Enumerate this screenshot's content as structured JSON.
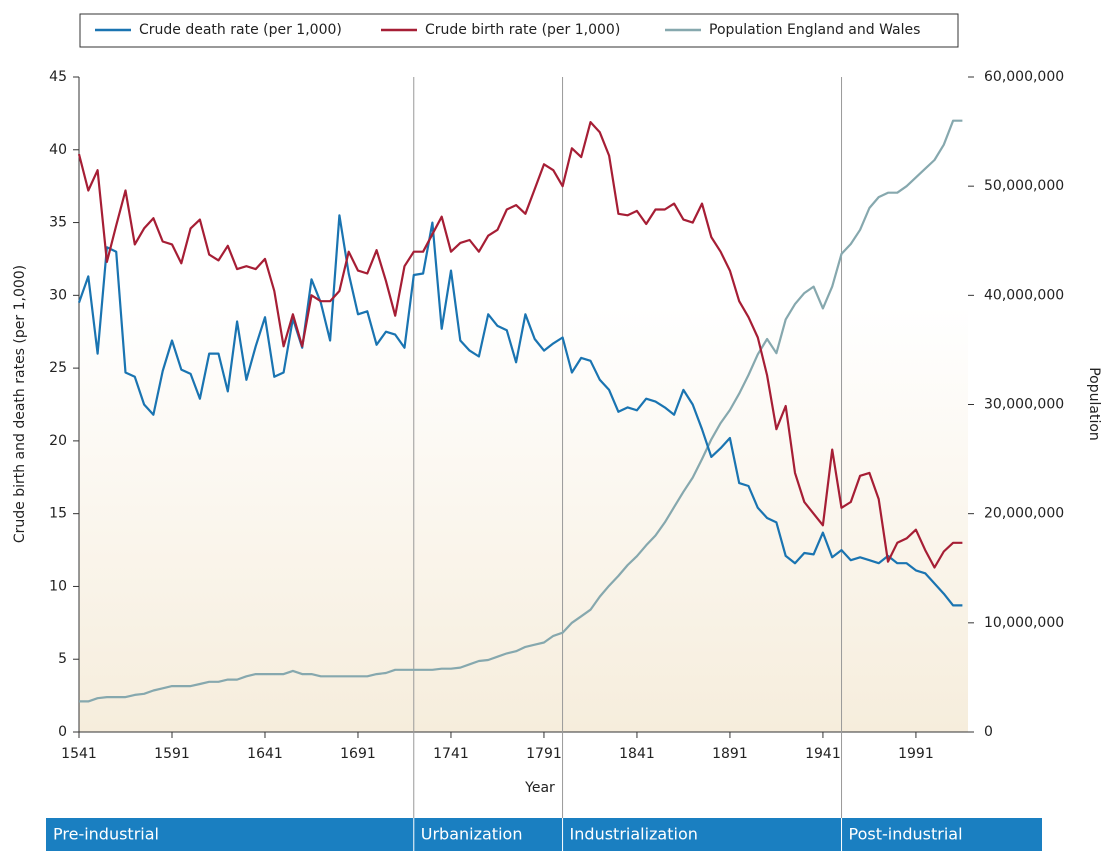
{
  "chart_data": {
    "type": "line",
    "xlabel": "Year",
    "ylabel": "Crude birth and death rates (per 1,000)",
    "y2label": "Population",
    "x": [
      1541,
      1546,
      1551,
      1556,
      1561,
      1566,
      1571,
      1576,
      1581,
      1586,
      1591,
      1596,
      1601,
      1606,
      1611,
      1616,
      1621,
      1626,
      1631,
      1636,
      1641,
      1646,
      1651,
      1656,
      1661,
      1666,
      1671,
      1676,
      1681,
      1686,
      1691,
      1696,
      1701,
      1706,
      1711,
      1716,
      1721,
      1726,
      1731,
      1736,
      1741,
      1746,
      1751,
      1756,
      1761,
      1766,
      1771,
      1776,
      1781,
      1786,
      1791,
      1796,
      1801,
      1806,
      1811,
      1816,
      1821,
      1826,
      1831,
      1836,
      1841,
      1846,
      1851,
      1856,
      1861,
      1866,
      1871,
      1876,
      1881,
      1886,
      1891,
      1896,
      1901,
      1906,
      1911,
      1916,
      1921,
      1926,
      1931,
      1936,
      1941,
      1946,
      1951,
      1956,
      1961,
      1966,
      1971,
      1976,
      1981,
      1986,
      1991,
      1996,
      2001,
      2006,
      2011,
      2016
    ],
    "series": [
      {
        "name": "Crude death rate (per 1,000)",
        "color": "#1a74b1",
        "values": [
          29.5,
          31.3,
          26,
          33.3,
          33,
          24.7,
          24.4,
          22.5,
          21.8,
          24.8,
          26.9,
          24.9,
          24.6,
          22.9,
          26,
          26,
          23.4,
          28.2,
          24.2,
          26.5,
          28.5,
          24.4,
          24.7,
          28.4,
          26.4,
          31.1,
          29.5,
          26.9,
          35.5,
          31.5,
          28.7,
          28.9,
          26.6,
          27.5,
          27.3,
          26.4,
          31.4,
          31.5,
          35,
          27.7,
          31.7,
          26.9,
          26.2,
          25.8,
          28.7,
          27.9,
          27.6,
          25.4,
          28.7,
          27,
          26.2,
          26.7,
          27.1,
          24.7,
          25.7,
          25.5,
          24.2,
          23.5,
          22,
          22.3,
          22.1,
          22.9,
          22.7,
          22.3,
          21.8,
          23.5,
          22.5,
          20.8,
          18.9,
          19.5,
          20.2,
          17.1,
          16.9,
          15.4,
          14.7,
          14.4,
          12.1,
          11.6,
          12.3,
          12.2,
          13.7,
          12,
          12.5,
          11.8,
          12,
          11.8,
          11.6,
          12.1,
          11.6,
          11.6,
          11.1,
          10.9,
          10.2,
          9.5,
          8.7,
          8.7
        ]
      },
      {
        "name": "Crude birth rate (per 1,000)",
        "color": "#a61e35",
        "values": [
          39.7,
          37.2,
          38.6,
          32.3,
          34.8,
          37.2,
          33.5,
          34.6,
          35.3,
          33.7,
          33.5,
          32.2,
          34.6,
          35.2,
          32.8,
          32.4,
          33.4,
          31.8,
          32,
          31.8,
          32.5,
          30.3,
          26.5,
          28.7,
          26.5,
          30,
          29.6,
          29.6,
          30.3,
          33,
          31.7,
          31.5,
          33.1,
          31,
          28.6,
          32,
          33,
          33,
          34.2,
          35.4,
          33,
          33.6,
          33.8,
          33,
          34.1,
          34.5,
          35.9,
          36.2,
          35.6,
          37.3,
          39,
          38.6,
          37.5,
          40.1,
          39.5,
          41.9,
          41.2,
          39.6,
          35.6,
          35.5,
          35.8,
          34.9,
          35.9,
          35.9,
          36.3,
          35.2,
          35,
          36.3,
          34,
          33,
          31.7,
          29.6,
          28.5,
          27.1,
          24.5,
          20.8,
          22.4,
          17.8,
          15.8,
          15,
          14.2,
          19.4,
          15.4,
          15.8,
          17.6,
          17.8,
          16,
          11.7,
          13,
          13.3,
          13.9,
          12.5,
          11.3,
          12.4,
          13,
          13
        ]
      },
      {
        "name": "Population England and Wales",
        "color": "#86a8ae",
        "axis": "y2",
        "values": [
          2800000,
          2800000,
          3100000,
          3200000,
          3200000,
          3200000,
          3400000,
          3500000,
          3800000,
          4000000,
          4200000,
          4200000,
          4200000,
          4400000,
          4600000,
          4600000,
          4800000,
          4800000,
          5100000,
          5300000,
          5300000,
          5300000,
          5300000,
          5600000,
          5300000,
          5300000,
          5100000,
          5100000,
          5100000,
          5100000,
          5100000,
          5100000,
          5300000,
          5400000,
          5700000,
          5700000,
          5700000,
          5700000,
          5700000,
          5800000,
          5800000,
          5900000,
          6200000,
          6500000,
          6600000,
          6900000,
          7200000,
          7400000,
          7800000,
          8000000,
          8200000,
          8800000,
          9100000,
          10000000,
          10600000,
          11200000,
          12400000,
          13400000,
          14300000,
          15300000,
          16100000,
          17100000,
          18000000,
          19200000,
          20600000,
          22000000,
          23300000,
          25000000,
          26800000,
          28300000,
          29500000,
          31000000,
          32700000,
          34600000,
          36000000,
          34700000,
          37800000,
          39200000,
          40200000,
          40800000,
          38800000,
          40800000,
          43800000,
          44700000,
          46000000,
          48000000,
          49000000,
          49400000,
          49400000,
          50000000,
          50800000,
          51600000,
          52400000,
          53800000,
          56000000,
          56000000
        ]
      }
    ],
    "xlim": [
      1541,
      2019
    ],
    "xticks": [
      1541,
      1591,
      1641,
      1691,
      1741,
      1791,
      1841,
      1891,
      1941,
      1991
    ],
    "ylim": [
      0,
      45
    ],
    "yticks": [
      0,
      5,
      10,
      15,
      20,
      25,
      30,
      35,
      40,
      45
    ],
    "y2lim": [
      0,
      60000000
    ],
    "y2ticks": [
      0,
      {
        "value": 10000000,
        "label": "10,000,000"
      },
      {
        "value": 20000000,
        "label": "20,000,000"
      },
      {
        "value": 30000000,
        "label": "30,000,000"
      },
      {
        "value": 40000000,
        "label": "40,000,000"
      },
      {
        "value": 50000000,
        "label": "50,000,000"
      },
      {
        "value": 60000000,
        "label": "60,000,000"
      }
    ],
    "phases": {
      "labels": [
        "Pre-industrial",
        "Urbanization",
        "Industrialization",
        "Post-industrial"
      ],
      "boundaries": [
        1721,
        1801,
        1951
      ]
    }
  }
}
